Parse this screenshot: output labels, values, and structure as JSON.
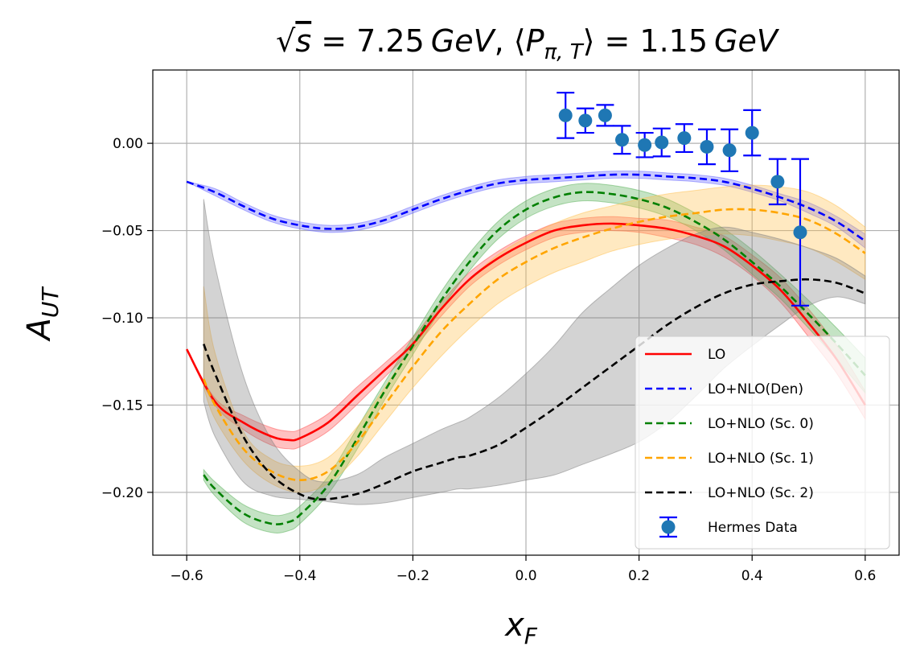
{
  "chart_data": {
    "type": "line",
    "title": "√s = 7.25 GeV, ⟨Pπ,T⟩ = 1.15 GeV",
    "title_parts": {
      "sqrt": "√",
      "s_var": "s",
      "eq1": " = 7.25",
      "unit1": "GeV",
      "sep": ", ⟨",
      "p": "P",
      "p_sub": "π, T",
      "close": "⟩ = 1.15",
      "unit2": "GeV"
    },
    "xlabel": {
      "main": "x",
      "sub": "F"
    },
    "ylabel": {
      "main": "A",
      "sub": "UT"
    },
    "xlim": [
      -0.66,
      0.66
    ],
    "ylim": [
      -0.236,
      0.042
    ],
    "xticks": [
      -0.6,
      -0.4,
      -0.2,
      0.0,
      0.2,
      0.4,
      0.6
    ],
    "xtick_labels": [
      "−0.6",
      "−0.4",
      "−0.2",
      "0.0",
      "0.2",
      "0.4",
      "0.6"
    ],
    "yticks": [
      0.0,
      -0.05,
      -0.1,
      -0.15,
      -0.2
    ],
    "ytick_labels": [
      "0.00",
      "−0.05",
      "−0.10",
      "−0.15",
      "−0.20"
    ],
    "grid": true,
    "legend_position": "lower right",
    "series": [
      {
        "name": "LO",
        "color": "#ff0000",
        "style": "solid",
        "x": [
          -0.6,
          -0.55,
          -0.5,
          -0.45,
          -0.42,
          -0.4,
          -0.35,
          -0.3,
          -0.25,
          -0.2,
          -0.15,
          -0.1,
          -0.05,
          0.0,
          0.05,
          0.1,
          0.15,
          0.2,
          0.25,
          0.3,
          0.35,
          0.4,
          0.45,
          0.5,
          0.55,
          0.6
        ],
        "y": [
          -0.118,
          -0.148,
          -0.16,
          -0.168,
          -0.17,
          -0.169,
          -0.16,
          -0.145,
          -0.13,
          -0.115,
          -0.095,
          -0.078,
          -0.066,
          -0.057,
          -0.05,
          -0.047,
          -0.046,
          -0.047,
          -0.049,
          -0.053,
          -0.059,
          -0.07,
          -0.084,
          -0.103,
          -0.124,
          -0.15
        ],
        "band_lo": [
          -0.118,
          -0.15,
          -0.164,
          -0.173,
          -0.175,
          -0.174,
          -0.165,
          -0.15,
          -0.134,
          -0.118,
          -0.099,
          -0.082,
          -0.07,
          -0.061,
          -0.054,
          -0.051,
          -0.05,
          -0.051,
          -0.054,
          -0.058,
          -0.065,
          -0.076,
          -0.091,
          -0.111,
          -0.132,
          -0.158
        ],
        "band_hi": [
          -0.118,
          -0.146,
          -0.156,
          -0.163,
          -0.165,
          -0.164,
          -0.155,
          -0.14,
          -0.126,
          -0.111,
          -0.091,
          -0.074,
          -0.062,
          -0.053,
          -0.046,
          -0.043,
          -0.042,
          -0.043,
          -0.044,
          -0.048,
          -0.053,
          -0.064,
          -0.077,
          -0.095,
          -0.116,
          -0.142
        ],
        "band_color": "#ff4d4d"
      },
      {
        "name": "LO+NLO(Den)",
        "color": "#0000ff",
        "style": "dashed",
        "x": [
          -0.6,
          -0.55,
          -0.5,
          -0.45,
          -0.4,
          -0.35,
          -0.3,
          -0.25,
          -0.2,
          -0.15,
          -0.1,
          -0.05,
          0.0,
          0.05,
          0.1,
          0.15,
          0.2,
          0.25,
          0.3,
          0.35,
          0.4,
          0.45,
          0.5,
          0.55,
          0.6
        ],
        "y": [
          -0.022,
          -0.028,
          -0.036,
          -0.043,
          -0.047,
          -0.049,
          -0.048,
          -0.044,
          -0.038,
          -0.032,
          -0.027,
          -0.023,
          -0.021,
          -0.02,
          -0.019,
          -0.018,
          -0.018,
          -0.019,
          -0.02,
          -0.022,
          -0.026,
          -0.031,
          -0.037,
          -0.045,
          -0.056
        ],
        "band_lo": [
          -0.022,
          -0.03,
          -0.038,
          -0.045,
          -0.049,
          -0.051,
          -0.05,
          -0.046,
          -0.04,
          -0.034,
          -0.029,
          -0.025,
          -0.023,
          -0.022,
          -0.021,
          -0.02,
          -0.02,
          -0.021,
          -0.022,
          -0.024,
          -0.028,
          -0.033,
          -0.04,
          -0.048,
          -0.06
        ],
        "band_hi": [
          -0.022,
          -0.026,
          -0.034,
          -0.041,
          -0.045,
          -0.047,
          -0.046,
          -0.042,
          -0.036,
          -0.03,
          -0.025,
          -0.021,
          -0.019,
          -0.018,
          -0.017,
          -0.016,
          -0.016,
          -0.017,
          -0.018,
          -0.02,
          -0.024,
          -0.029,
          -0.034,
          -0.042,
          -0.052
        ],
        "band_color": "#6666ff"
      },
      {
        "name": "LO+NLO (Sc. 0)",
        "color": "#008000",
        "style": "dashed",
        "x": [
          -0.57,
          -0.55,
          -0.5,
          -0.45,
          -0.42,
          -0.4,
          -0.35,
          -0.3,
          -0.25,
          -0.2,
          -0.15,
          -0.1,
          -0.05,
          0.0,
          0.05,
          0.1,
          0.15,
          0.2,
          0.25,
          0.3,
          0.35,
          0.4,
          0.45,
          0.5,
          0.55,
          0.6
        ],
        "y": [
          -0.19,
          -0.198,
          -0.212,
          -0.218,
          -0.217,
          -0.213,
          -0.196,
          -0.17,
          -0.142,
          -0.116,
          -0.09,
          -0.068,
          -0.05,
          -0.038,
          -0.031,
          -0.028,
          -0.029,
          -0.032,
          -0.037,
          -0.045,
          -0.055,
          -0.068,
          -0.082,
          -0.098,
          -0.115,
          -0.133
        ],
        "band_lo": [
          -0.193,
          -0.202,
          -0.217,
          -0.223,
          -0.222,
          -0.218,
          -0.201,
          -0.176,
          -0.147,
          -0.121,
          -0.095,
          -0.073,
          -0.055,
          -0.043,
          -0.036,
          -0.033,
          -0.034,
          -0.037,
          -0.042,
          -0.05,
          -0.061,
          -0.075,
          -0.089,
          -0.106,
          -0.124,
          -0.143
        ],
        "band_hi": [
          -0.187,
          -0.194,
          -0.207,
          -0.213,
          -0.212,
          -0.208,
          -0.191,
          -0.164,
          -0.137,
          -0.111,
          -0.085,
          -0.063,
          -0.045,
          -0.033,
          -0.026,
          -0.023,
          -0.024,
          -0.027,
          -0.032,
          -0.04,
          -0.049,
          -0.061,
          -0.075,
          -0.09,
          -0.106,
          -0.123
        ],
        "band_color": "#55b055"
      },
      {
        "name": "LO+NLO (Sc. 1)",
        "color": "#ffa500",
        "style": "dashed",
        "x": [
          -0.57,
          -0.55,
          -0.5,
          -0.45,
          -0.4,
          -0.35,
          -0.3,
          -0.25,
          -0.2,
          -0.15,
          -0.1,
          -0.05,
          0.0,
          0.05,
          0.1,
          0.15,
          0.2,
          0.25,
          0.3,
          0.35,
          0.4,
          0.45,
          0.5,
          0.55,
          0.6
        ],
        "y": [
          -0.135,
          -0.15,
          -0.175,
          -0.188,
          -0.193,
          -0.188,
          -0.172,
          -0.15,
          -0.128,
          -0.108,
          -0.092,
          -0.078,
          -0.068,
          -0.06,
          -0.054,
          -0.049,
          -0.045,
          -0.042,
          -0.04,
          -0.038,
          -0.038,
          -0.04,
          -0.044,
          -0.052,
          -0.063
        ],
        "band_lo": [
          -0.14,
          -0.158,
          -0.182,
          -0.195,
          -0.2,
          -0.195,
          -0.18,
          -0.16,
          -0.14,
          -0.122,
          -0.106,
          -0.092,
          -0.082,
          -0.074,
          -0.068,
          -0.062,
          -0.058,
          -0.055,
          -0.053,
          -0.052,
          -0.053,
          -0.056,
          -0.06,
          -0.068,
          -0.078
        ],
        "band_hi": [
          -0.082,
          -0.12,
          -0.165,
          -0.181,
          -0.185,
          -0.18,
          -0.163,
          -0.14,
          -0.116,
          -0.094,
          -0.078,
          -0.064,
          -0.054,
          -0.046,
          -0.04,
          -0.036,
          -0.032,
          -0.029,
          -0.027,
          -0.025,
          -0.024,
          -0.025,
          -0.028,
          -0.036,
          -0.048
        ],
        "band_color": "#ffc04d"
      },
      {
        "name": "LO+NLO (Sc. 2)",
        "color": "#000000",
        "style": "dashed",
        "x": [
          -0.57,
          -0.55,
          -0.5,
          -0.45,
          -0.4,
          -0.36,
          -0.3,
          -0.25,
          -0.2,
          -0.15,
          -0.12,
          -0.1,
          -0.05,
          0.0,
          0.05,
          0.1,
          0.15,
          0.2,
          0.25,
          0.3,
          0.35,
          0.4,
          0.45,
          0.5,
          0.55,
          0.6
        ],
        "y": [
          -0.115,
          -0.132,
          -0.168,
          -0.19,
          -0.201,
          -0.204,
          -0.201,
          -0.195,
          -0.188,
          -0.183,
          -0.18,
          -0.179,
          -0.173,
          -0.163,
          -0.152,
          -0.14,
          -0.128,
          -0.116,
          -0.104,
          -0.094,
          -0.086,
          -0.081,
          -0.079,
          -0.078,
          -0.08,
          -0.086
        ],
        "band_lo": [
          -0.148,
          -0.168,
          -0.194,
          -0.202,
          -0.204,
          -0.205,
          -0.207,
          -0.206,
          -0.203,
          -0.2,
          -0.198,
          -0.198,
          -0.196,
          -0.193,
          -0.19,
          -0.184,
          -0.178,
          -0.171,
          -0.16,
          -0.145,
          -0.129,
          -0.116,
          -0.104,
          -0.093,
          -0.088,
          -0.092
        ],
        "band_hi": [
          -0.032,
          -0.07,
          -0.133,
          -0.17,
          -0.188,
          -0.194,
          -0.19,
          -0.18,
          -0.172,
          -0.164,
          -0.16,
          -0.157,
          -0.146,
          -0.132,
          -0.116,
          -0.097,
          -0.083,
          -0.07,
          -0.06,
          -0.052,
          -0.048,
          -0.051,
          -0.055,
          -0.06,
          -0.066,
          -0.076
        ],
        "band_color": "#808080"
      }
    ],
    "points": {
      "name": "Hermes Data",
      "marker_color": "#1f77b4",
      "errorbar_color": "#0000ff",
      "x": [
        0.07,
        0.105,
        0.14,
        0.17,
        0.21,
        0.24,
        0.28,
        0.32,
        0.36,
        0.4,
        0.445,
        0.485
      ],
      "y": [
        0.016,
        0.013,
        0.016,
        0.002,
        -0.001,
        0.0005,
        0.003,
        -0.002,
        -0.004,
        0.006,
        -0.022,
        -0.051
      ],
      "err": [
        0.013,
        0.007,
        0.006,
        0.008,
        0.007,
        0.008,
        0.008,
        0.01,
        0.012,
        0.013,
        0.013,
        0.042
      ]
    }
  }
}
